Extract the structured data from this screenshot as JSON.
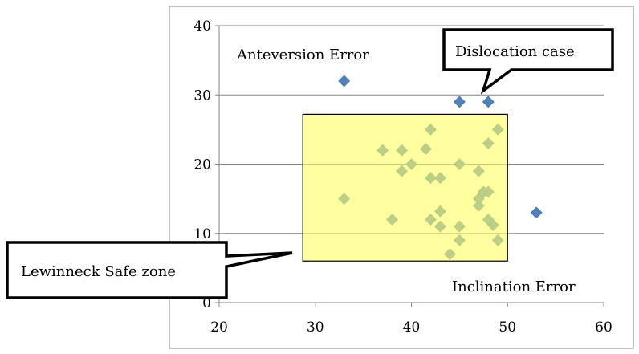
{
  "chart_data": {
    "type": "scatter",
    "title": "",
    "xlabel": "",
    "ylabel": "",
    "xlim": [
      20,
      60
    ],
    "ylim": [
      0,
      40
    ],
    "x_ticks": [
      20,
      30,
      40,
      50,
      60
    ],
    "y_ticks": [
      0,
      10,
      20,
      30,
      40
    ],
    "grid": "horizontal",
    "marker_color": "#4f81bd",
    "series": [
      {
        "points": [
          [
            33,
            32
          ],
          [
            45,
            29
          ],
          [
            48,
            29
          ],
          [
            49,
            25
          ],
          [
            42,
            25
          ],
          [
            48,
            23
          ],
          [
            37,
            22
          ],
          [
            39,
            22
          ],
          [
            41.5,
            22.2
          ],
          [
            40,
            20
          ],
          [
            45,
            20
          ],
          [
            39,
            19
          ],
          [
            47,
            19
          ],
          [
            42,
            18
          ],
          [
            43,
            18
          ],
          [
            47.5,
            16
          ],
          [
            48,
            16
          ],
          [
            33,
            15
          ],
          [
            47,
            15
          ],
          [
            47,
            14
          ],
          [
            43,
            13.2
          ],
          [
            53,
            13
          ],
          [
            38,
            12
          ],
          [
            42,
            12
          ],
          [
            48,
            12
          ],
          [
            48.5,
            11.2
          ],
          [
            43,
            11
          ],
          [
            45,
            11
          ],
          [
            45,
            9
          ],
          [
            49,
            9
          ],
          [
            44,
            7
          ]
        ]
      }
    ],
    "safe_zone": {
      "x": [
        28.7,
        50
      ],
      "y": [
        6,
        27.2
      ],
      "fill": "#ffff99"
    },
    "annotations": {
      "anteversion": "Anteversion Error",
      "inclination": "Inclination Error",
      "dislocation": "Dislocation case",
      "safe_zone": "Lewinneck Safe zone"
    }
  }
}
